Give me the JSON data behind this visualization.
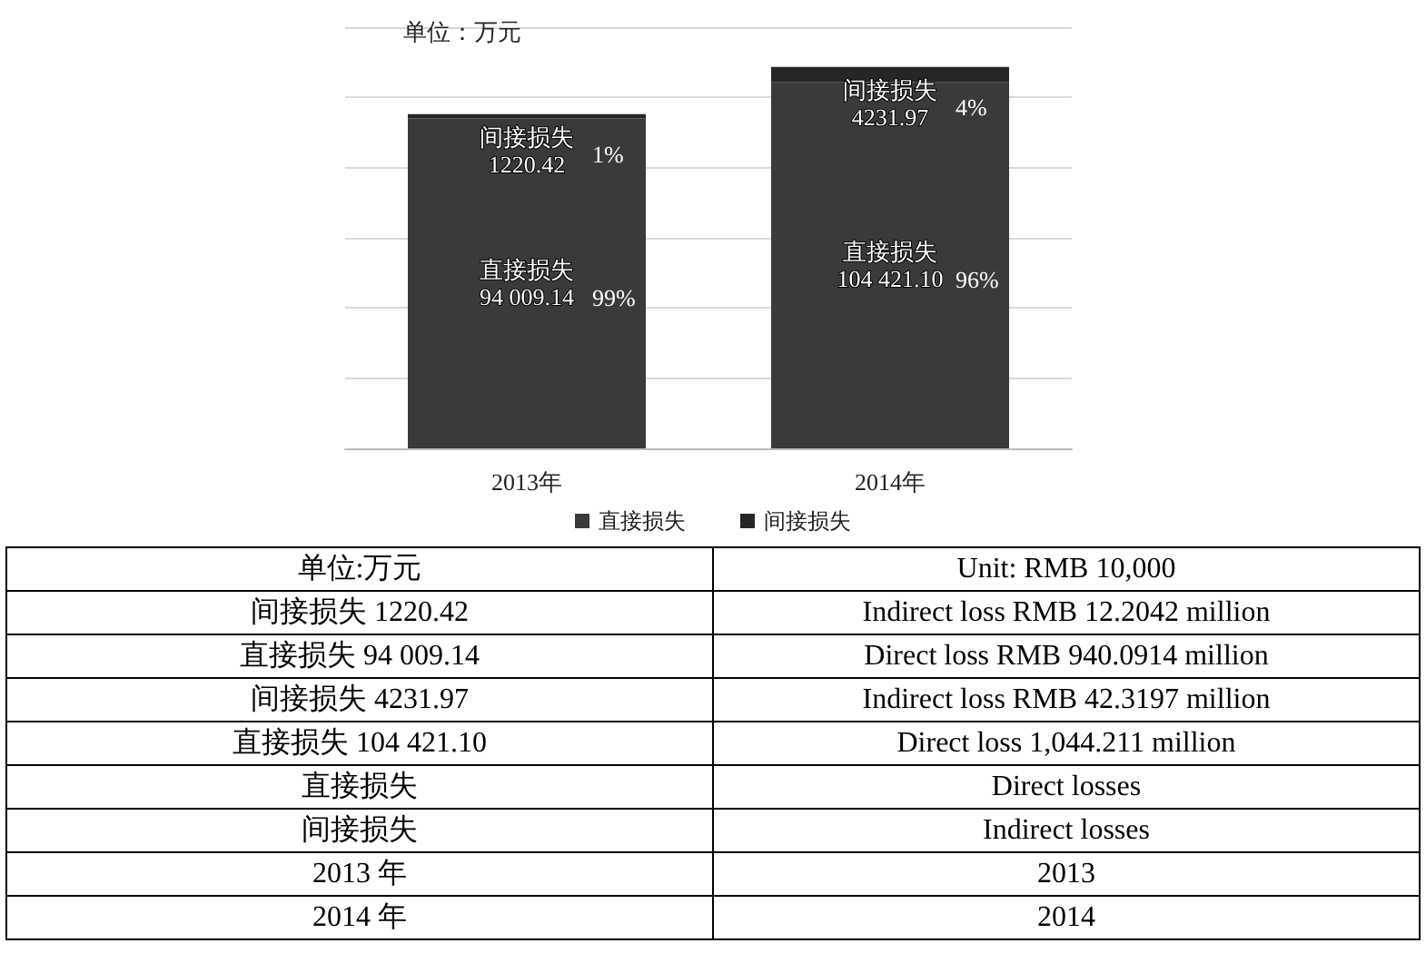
{
  "chart_data": {
    "type": "bar",
    "stacked": true,
    "categories": [
      "2013年",
      "2014年"
    ],
    "series": [
      {
        "name": "直接损失",
        "color": "#3a3a3a",
        "values": [
          94009.14,
          104421.1
        ],
        "value_labels": [
          "94 009.14",
          "104 421.10"
        ]
      },
      {
        "name": "间接损失",
        "color": "#262626",
        "values": [
          1220.42,
          4231.97
        ],
        "value_labels": [
          "1220.42",
          "4231.97"
        ]
      }
    ],
    "grid": "y",
    "legend": "bottom",
    "annotations": [
      "99%",
      "1%",
      "96%",
      "4%",
      "单位：万元",
      "单位:万元",
      "Unit: RMB 10,000",
      "间接损失 1220.42",
      "Indirect loss RMB 12.2042 million",
      "直接损失 94 009.14",
      "Direct loss RMB 940.0914 million",
      "间接损失 4231.97",
      "Indirect loss RMB 42.3197 million",
      "直接损失 104 421.10",
      "Direct loss 1,044.211 million",
      "直接损失",
      "Direct losses",
      "间接损失",
      "Indirect losses",
      "2013 年",
      "2013",
      "2014 年",
      "2014"
    ]
  }
}
